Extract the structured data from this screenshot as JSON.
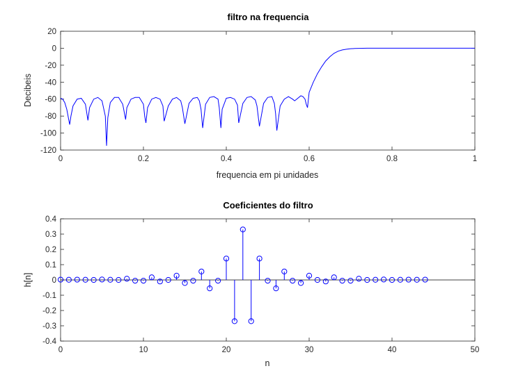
{
  "chart_data": [
    {
      "type": "line",
      "title": "filtro na frequencia",
      "xlabel": "frequencia em pi unidades",
      "ylabel": "Decibeis",
      "xlim": [
        0,
        1
      ],
      "ylim": [
        -120,
        20
      ],
      "xticks": [
        "0",
        "0.2",
        "0.4",
        "0.6",
        "0.8",
        "1"
      ],
      "yticks": [
        "20",
        "0",
        "-20",
        "-40",
        "-60",
        "-80",
        "-100",
        "-120"
      ],
      "grid": false,
      "color": "#0000ff",
      "series": [
        {
          "x": [
            0,
            0.005,
            0.01,
            0.015,
            0.02,
            0.022,
            0.025,
            0.03,
            0.04,
            0.05,
            0.06,
            0.066,
            0.07,
            0.08,
            0.09,
            0.1,
            0.108,
            0.111,
            0.114,
            0.12,
            0.13,
            0.14,
            0.15,
            0.157,
            0.16,
            0.17,
            0.18,
            0.19,
            0.2,
            0.203,
            0.206,
            0.21,
            0.22,
            0.23,
            0.24,
            0.247,
            0.25,
            0.26,
            0.27,
            0.28,
            0.29,
            0.294,
            0.3,
            0.31,
            0.32,
            0.33,
            0.335,
            0.339,
            0.343,
            0.35,
            0.36,
            0.37,
            0.38,
            0.383,
            0.387,
            0.39,
            0.4,
            0.41,
            0.42,
            0.427,
            0.43,
            0.44,
            0.45,
            0.46,
            0.47,
            0.474,
            0.48,
            0.49,
            0.5,
            0.51,
            0.516,
            0.519,
            0.522,
            0.53,
            0.54,
            0.55,
            0.56,
            0.565,
            0.57,
            0.58,
            0.585,
            0.59,
            0.593,
            0.596,
            0.6,
            0.61,
            0.62,
            0.63,
            0.64,
            0.65,
            0.66,
            0.67,
            0.68,
            0.69,
            0.7,
            0.71,
            0.72,
            0.73,
            0.74,
            0.75,
            0.76,
            0.78,
            0.8,
            0.85,
            0.9,
            0.95,
            1.0
          ],
          "y": [
            -59,
            -60,
            -64,
            -72,
            -85,
            -90,
            -80,
            -68,
            -60,
            -59,
            -66,
            -85,
            -70,
            -60,
            -58,
            -62,
            -80,
            -115,
            -82,
            -64,
            -58,
            -58,
            -66,
            -84,
            -70,
            -60,
            -58,
            -58,
            -66,
            -80,
            -88,
            -70,
            -60,
            -58,
            -60,
            -68,
            -86,
            -68,
            -60,
            -58,
            -62,
            -70,
            -89,
            -65,
            -59,
            -58,
            -62,
            -72,
            -94,
            -66,
            -58,
            -57,
            -60,
            -70,
            -94,
            -72,
            -59,
            -58,
            -60,
            -67,
            -88,
            -65,
            -58,
            -57,
            -61,
            -68,
            -92,
            -65,
            -58,
            -57,
            -65,
            -77,
            -97,
            -68,
            -60,
            -57,
            -60,
            -62,
            -60,
            -56,
            -57,
            -60,
            -66,
            -70,
            -52,
            -40,
            -30,
            -22,
            -15,
            -10,
            -6,
            -3.5,
            -2,
            -1.2,
            -0.6,
            -0.3,
            -0.15,
            -0.05,
            0,
            0,
            0,
            0,
            0,
            0,
            0,
            0,
            0
          ]
        }
      ]
    },
    {
      "type": "stem",
      "title": "Coeficientes do filtro",
      "xlabel": "n",
      "ylabel": "h[n]",
      "xlim": [
        0,
        50
      ],
      "ylim": [
        -0.4,
        0.4
      ],
      "xticks": [
        "0",
        "10",
        "20",
        "30",
        "40",
        "50"
      ],
      "yticks": [
        "0.4",
        "0.3",
        "0.2",
        "0.1",
        "0",
        "-0.1",
        "-0.2",
        "-0.3",
        "-0.4"
      ],
      "grid": false,
      "color": "#0000ff",
      "x": [
        0,
        1,
        2,
        3,
        4,
        5,
        6,
        7,
        8,
        9,
        10,
        11,
        12,
        13,
        14,
        15,
        16,
        17,
        18,
        19,
        20,
        21,
        22,
        23,
        24,
        25,
        26,
        27,
        28,
        29,
        30,
        31,
        32,
        33,
        34,
        35,
        36,
        37,
        38,
        39,
        40,
        41,
        42,
        43,
        44
      ],
      "values": [
        0.002,
        0.001,
        0.002,
        0.001,
        0.0,
        0.003,
        0.001,
        0.0,
        0.008,
        -0.005,
        -0.005,
        0.017,
        -0.01,
        0.0,
        0.028,
        -0.02,
        -0.005,
        0.055,
        -0.055,
        -0.005,
        0.14,
        -0.27,
        0.33,
        -0.27,
        0.14,
        -0.005,
        -0.055,
        0.055,
        -0.005,
        -0.02,
        0.028,
        0.0,
        -0.01,
        0.017,
        -0.005,
        -0.005,
        0.008,
        0.0,
        0.001,
        0.003,
        0.0,
        0.001,
        0.002,
        0.001,
        0.002
      ]
    }
  ]
}
